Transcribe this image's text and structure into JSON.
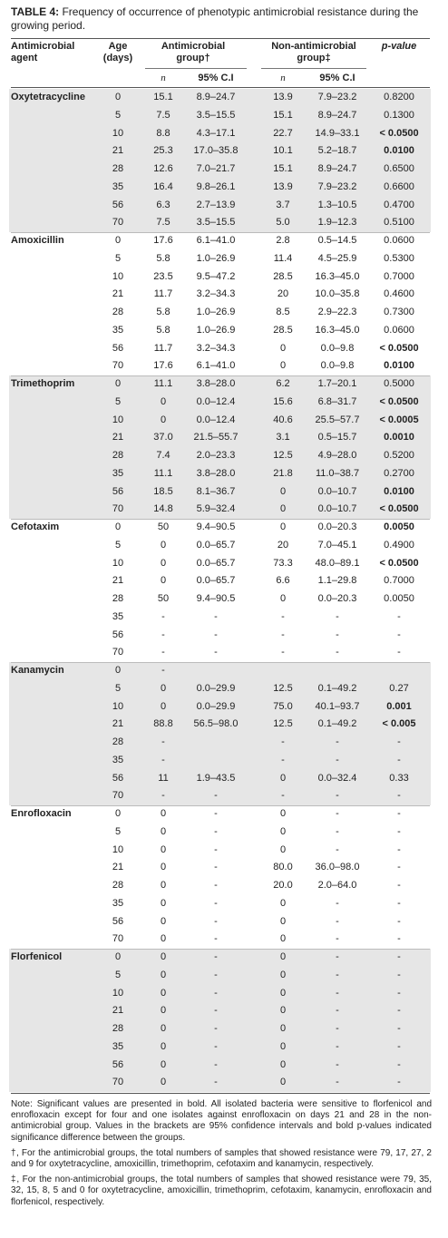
{
  "title": {
    "label": "TABLE 4:",
    "text": "Frequency of occurrence of phenotypic antimicrobial resistance during the growing period."
  },
  "header": {
    "agent": "Antimicrobial agent",
    "age": "Age (days)",
    "group1": "Antimicrobial group†",
    "group2": "Non-antimicrobial group‡",
    "p": "p-value",
    "n1": "n",
    "ci1": "95% C.I",
    "n2": "n",
    "ci2": "95% C.I"
  },
  "groups": [
    {
      "agent": "Oxytetracycline",
      "rows": [
        {
          "age": "0",
          "n1": "15.1",
          "ci1": "8.9–24.7",
          "n2": "13.9",
          "ci2": "7.9–23.2",
          "p": "0.8200"
        },
        {
          "age": "5",
          "n1": "7.5",
          "ci1": "3.5–15.5",
          "n2": "15.1",
          "ci2": "8.9–24.7",
          "p": "0.1300"
        },
        {
          "age": "10",
          "n1": "8.8",
          "ci1": "4.3–17.1",
          "n2": "22.7",
          "ci2": "14.9–33.1",
          "p": "< 0.0500",
          "p_bold": true
        },
        {
          "age": "21",
          "n1": "25.3",
          "ci1": "17.0–35.8",
          "n2": "10.1",
          "ci2": "5.2–18.7",
          "p": "0.0100",
          "p_bold": true
        },
        {
          "age": "28",
          "n1": "12.6",
          "ci1": "7.0–21.7",
          "n2": "15.1",
          "ci2": "8.9–24.7",
          "p": "0.6500"
        },
        {
          "age": "35",
          "n1": "16.4",
          "ci1": "9.8–26.1",
          "n2": "13.9",
          "ci2": "7.9–23.2",
          "p": "0.6600"
        },
        {
          "age": "56",
          "n1": "6.3",
          "ci1": "2.7–13.9",
          "n2": "3.7",
          "ci2": "1.3–10.5",
          "p": "0.4700"
        },
        {
          "age": "70",
          "n1": "7.5",
          "ci1": "3.5–15.5",
          "n2": "5.0",
          "ci2": "1.9–12.3",
          "p": "0.5100"
        }
      ]
    },
    {
      "agent": "Amoxicillin",
      "rows": [
        {
          "age": "0",
          "n1": "17.6",
          "ci1": "6.1–41.0",
          "n2": "2.8",
          "ci2": "0.5–14.5",
          "p": "0.0600"
        },
        {
          "age": "5",
          "n1": "5.8",
          "ci1": "1.0–26.9",
          "n2": "11.4",
          "ci2": "4.5–25.9",
          "p": "0.5300"
        },
        {
          "age": "10",
          "n1": "23.5",
          "ci1": "9.5–47.2",
          "n2": "28.5",
          "ci2": "16.3–45.0",
          "p": "0.7000"
        },
        {
          "age": "21",
          "n1": "11.7",
          "ci1": "3.2–34.3",
          "n2": "20",
          "ci2": "10.0–35.8",
          "p": "0.4600"
        },
        {
          "age": "28",
          "n1": "5.8",
          "ci1": "1.0–26.9",
          "n2": "8.5",
          "ci2": "2.9–22.3",
          "p": "0.7300"
        },
        {
          "age": "35",
          "n1": "5.8",
          "ci1": "1.0–26.9",
          "n2": "28.5",
          "ci2": "16.3–45.0",
          "p": "0.0600"
        },
        {
          "age": "56",
          "n1": "11.7",
          "ci1": "3.2–34.3",
          "n2": "0",
          "ci2": "0.0–9.8",
          "p": "< 0.0500",
          "p_bold": true
        },
        {
          "age": "70",
          "n1": "17.6",
          "ci1": "6.1–41.0",
          "n2": "0",
          "ci2": "0.0–9.8",
          "p": "0.0100",
          "p_bold": true
        }
      ]
    },
    {
      "agent": "Trimethoprim",
      "rows": [
        {
          "age": "0",
          "n1": "11.1",
          "ci1": "3.8–28.0",
          "n2": "6.2",
          "ci2": "1.7–20.1",
          "p": "0.5000"
        },
        {
          "age": "5",
          "n1": "0",
          "ci1": "0.0–12.4",
          "n2": "15.6",
          "ci2": "6.8–31.7",
          "p": "< 0.0500",
          "p_bold": true
        },
        {
          "age": "10",
          "n1": "0",
          "ci1": "0.0–12.4",
          "n2": "40.6",
          "ci2": "25.5–57.7",
          "p": "< 0.0005",
          "p_bold": true
        },
        {
          "age": "21",
          "n1": "37.0",
          "ci1": "21.5–55.7",
          "n2": "3.1",
          "ci2": "0.5–15.7",
          "p": "0.0010",
          "p_bold": true
        },
        {
          "age": "28",
          "n1": "7.4",
          "ci1": "2.0–23.3",
          "n2": "12.5",
          "ci2": "4.9–28.0",
          "p": "0.5200"
        },
        {
          "age": "35",
          "n1": "11.1",
          "ci1": "3.8–28.0",
          "n2": "21.8",
          "ci2": "11.0–38.7",
          "p": "0.2700"
        },
        {
          "age": "56",
          "n1": "18.5",
          "ci1": "8.1–36.7",
          "n2": "0",
          "ci2": "0.0–10.7",
          "p": "0.0100",
          "p_bold": true
        },
        {
          "age": "70",
          "n1": "14.8",
          "ci1": "5.9–32.4",
          "n2": "0",
          "ci2": "0.0–10.7",
          "p": "< 0.0500",
          "p_bold": true
        }
      ]
    },
    {
      "agent": "Cefotaxim",
      "rows": [
        {
          "age": "0",
          "n1": "50",
          "ci1": "9.4–90.5",
          "n2": "0",
          "ci2": "0.0–20.3",
          "p": "0.0050",
          "p_bold": true
        },
        {
          "age": "5",
          "n1": "0",
          "ci1": "0.0–65.7",
          "n2": "20",
          "ci2": "7.0–45.1",
          "p": "0.4900"
        },
        {
          "age": "10",
          "n1": "0",
          "ci1": "0.0–65.7",
          "n2": "73.3",
          "ci2": "48.0–89.1",
          "p": "< 0.0500",
          "p_bold": true
        },
        {
          "age": "21",
          "n1": "0",
          "ci1": "0.0–65.7",
          "n2": "6.6",
          "ci2": "1.1–29.8",
          "p": "0.7000"
        },
        {
          "age": "28",
          "n1": "50",
          "ci1": "9.4–90.5",
          "n2": "0",
          "ci2": "0.0–20.3",
          "p": "0.0050"
        },
        {
          "age": "35",
          "n1": "-",
          "ci1": "-",
          "n2": "-",
          "ci2": "-",
          "p": "-"
        },
        {
          "age": "56",
          "n1": "-",
          "ci1": "-",
          "n2": "-",
          "ci2": "-",
          "p": "-"
        },
        {
          "age": "70",
          "n1": "-",
          "ci1": "-",
          "n2": "-",
          "ci2": "-",
          "p": "-"
        }
      ]
    },
    {
      "agent": "Kanamycin",
      "rows": [
        {
          "age": "0",
          "n1": "-",
          "ci1": null,
          "n2": null,
          "ci2": null,
          "p": null
        },
        {
          "age": "5",
          "n1": "0",
          "ci1": "0.0–29.9",
          "n2": "12.5",
          "ci2": "0.1–49.2",
          "p": "0.27"
        },
        {
          "age": "10",
          "n1": "0",
          "ci1": "0.0–29.9",
          "n2": "75.0",
          "ci2": "40.1–93.7",
          "p": "0.001",
          "p_bold": true
        },
        {
          "age": "21",
          "n1": "88.8",
          "ci1": "56.5–98.0",
          "n2": "12.5",
          "ci2": "0.1–49.2",
          "p": "< 0.005",
          "p_bold": true
        },
        {
          "age": "28",
          "n1": "-",
          "ci1": null,
          "n2": "-",
          "ci2": "-",
          "p": "-"
        },
        {
          "age": "35",
          "n1": "-",
          "ci1": null,
          "n2": "-",
          "ci2": "-",
          "p": "-"
        },
        {
          "age": "56",
          "n1": "11",
          "ci1": "1.9–43.5",
          "n2": "0",
          "ci2": "0.0–32.4",
          "p": "0.33"
        },
        {
          "age": "70",
          "n1": "-",
          "ci1": "-",
          "n2": "-",
          "ci2": "-",
          "p": "-"
        }
      ]
    },
    {
      "agent": "Enrofloxacin",
      "rows": [
        {
          "age": "0",
          "n1": "0",
          "ci1": "-",
          "n2": "0",
          "ci2": "-",
          "p": "-"
        },
        {
          "age": "5",
          "n1": "0",
          "ci1": "-",
          "n2": "0",
          "ci2": "-",
          "p": "-"
        },
        {
          "age": "10",
          "n1": "0",
          "ci1": "-",
          "n2": "0",
          "ci2": "-",
          "p": "-"
        },
        {
          "age": "21",
          "n1": "0",
          "ci1": "-",
          "n2": "80.0",
          "ci2": "36.0–98.0",
          "p": "-"
        },
        {
          "age": "28",
          "n1": "0",
          "ci1": "-",
          "n2": "20.0",
          "ci2": "2.0–64.0",
          "p": "-"
        },
        {
          "age": "35",
          "n1": "0",
          "ci1": "-",
          "n2": "0",
          "ci2": "-",
          "p": "-"
        },
        {
          "age": "56",
          "n1": "0",
          "ci1": "-",
          "n2": "0",
          "ci2": "-",
          "p": "-"
        },
        {
          "age": "70",
          "n1": "0",
          "ci1": "-",
          "n2": "0",
          "ci2": "-",
          "p": "-"
        }
      ]
    },
    {
      "agent": "Florfenicol",
      "rows": [
        {
          "age": "0",
          "n1": "0",
          "ci1": "-",
          "n2": "0",
          "ci2": "-",
          "p": "-"
        },
        {
          "age": "5",
          "n1": "0",
          "ci1": "-",
          "n2": "0",
          "ci2": "-",
          "p": "-"
        },
        {
          "age": "10",
          "n1": "0",
          "ci1": "-",
          "n2": "0",
          "ci2": "-",
          "p": "-"
        },
        {
          "age": "21",
          "n1": "0",
          "ci1": "-",
          "n2": "0",
          "ci2": "-",
          "p": "-"
        },
        {
          "age": "28",
          "n1": "0",
          "ci1": "-",
          "n2": "0",
          "ci2": "-",
          "p": "-"
        },
        {
          "age": "35",
          "n1": "0",
          "ci1": "-",
          "n2": "0",
          "ci2": "-",
          "p": "-"
        },
        {
          "age": "56",
          "n1": "0",
          "ci1": "-",
          "n2": "0",
          "ci2": "-",
          "p": "-"
        },
        {
          "age": "70",
          "n1": "0",
          "ci1": "-",
          "n2": "0",
          "ci2": "-",
          "p": "-"
        }
      ]
    }
  ],
  "notes": [
    "Note: Significant values are presented in bold. All isolated bacteria were sensitive to florfenicol and enrofloxacin except for four and one isolates against enrofloxacin on days 21 and 28 in the non-antimicrobial group. Values in the brackets are 95% confidence intervals and bold p-values indicated significance difference between the groups.",
    "†, For the antimicrobial groups, the total numbers of samples that showed resistance were 79, 17, 27, 2 and 9 for oxytetracycline, amoxicillin, trimethoprim, cefotaxim and kanamycin, respectively.",
    "‡, For the non-antimicrobial groups, the total numbers of samples that showed resistance were 79, 35, 32, 15, 8, 5 and 0 for oxytetracycline, amoxicillin, trimethoprim, cefotaxim, kanamycin, enrofloxacin and florfenicol, respectively."
  ]
}
